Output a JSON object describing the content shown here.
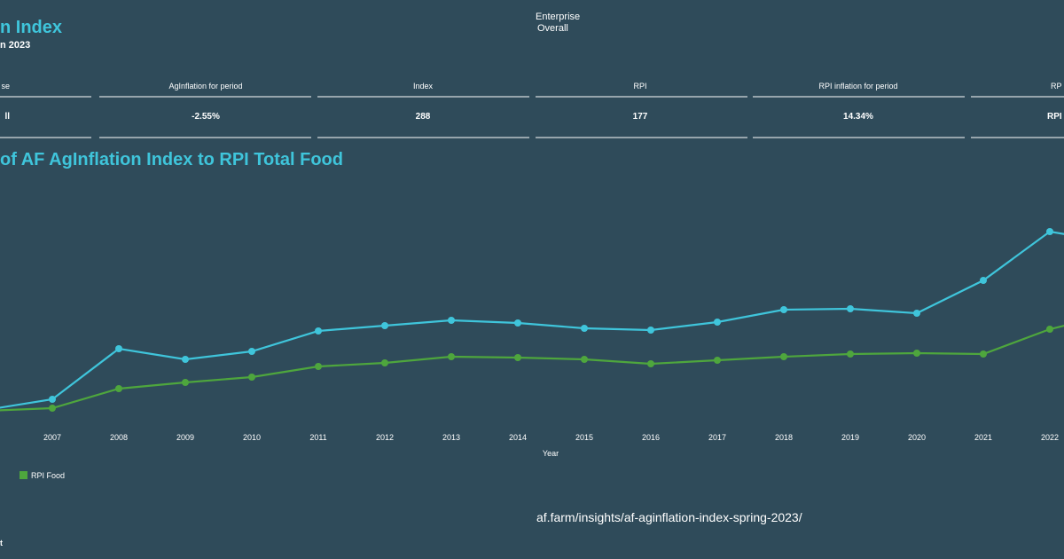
{
  "header": {
    "title": "n Index",
    "subtitle": "n 2023"
  },
  "filter": {
    "label": "Enterprise",
    "value": "Overall"
  },
  "table": {
    "columns": [
      "se",
      "AgInflation for period",
      "Index",
      "RPI",
      "RPI inflation for period",
      "RP"
    ],
    "rows": [
      [
        "ll",
        "-2.55%",
        "288",
        "177",
        "14.34%",
        "RPI"
      ]
    ]
  },
  "chart_data": {
    "type": "line",
    "title": "of AF AgInflation Index to RPI Total Food",
    "x_label": "Year",
    "categories": [
      null,
      "2007",
      "2008",
      "2009",
      "2010",
      "2011",
      "2012",
      "2013",
      "2014",
      "2015",
      "2016",
      "2017",
      "2018",
      "2019",
      "2020",
      "2021",
      "2022",
      null
    ],
    "series": [
      {
        "color": "#3fc5db",
        "values": [
          100,
          112,
          169,
          157,
          166,
          189,
          195,
          201,
          198,
          192,
          190,
          199,
          213,
          214,
          209,
          246,
          301,
          288
        ]
      },
      {
        "name": "RPI Food",
        "color": "#4ea63d",
        "values": [
          99,
          102,
          124,
          131,
          137,
          149,
          153,
          160,
          159,
          157,
          152,
          156,
          160,
          163,
          164,
          163,
          191,
          209
        ]
      }
    ],
    "ylim": [
      80,
      360
    ]
  },
  "footer": {
    "url": "af.farm/insights/af-aginflation-index-spring-2023/",
    "note": "t"
  }
}
